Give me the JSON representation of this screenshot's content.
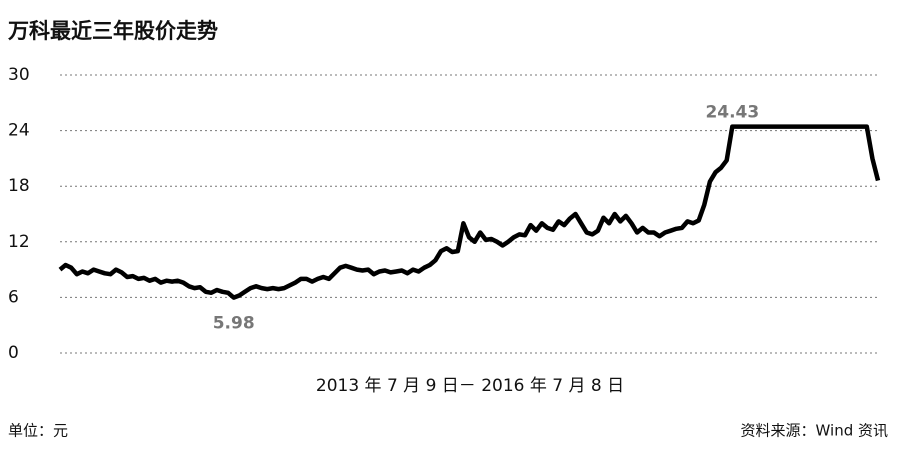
{
  "chart_data": {
    "type": "line",
    "title": "万科最近三年股价走势",
    "x_label": "2013 年 7 月 9 日－ 2016 年 7 月 8 日",
    "unit": "单位：元",
    "source": "资料来源：Wind 资讯",
    "categories": [
      null,
      null,
      null,
      null,
      null,
      null,
      null,
      null,
      null,
      null,
      null,
      null,
      null,
      null,
      null,
      null,
      null,
      null,
      null,
      null,
      null,
      null,
      null,
      null,
      null,
      null,
      null,
      null,
      null,
      null,
      null,
      null,
      null,
      null,
      null,
      null,
      null,
      null,
      null,
      null,
      null,
      null,
      null,
      null,
      null,
      null,
      null,
      null,
      null,
      null,
      null,
      null,
      null,
      null,
      null,
      null,
      null,
      null,
      null,
      null,
      null,
      null,
      null,
      null,
      null,
      null,
      null,
      null,
      null,
      null,
      null,
      null,
      null,
      null,
      null,
      null,
      null,
      null,
      null,
      null,
      null,
      null,
      null,
      null,
      null,
      null,
      null,
      null,
      null,
      null,
      null,
      null,
      null,
      null,
      null,
      null,
      null,
      null,
      null,
      null,
      null,
      null,
      null,
      null,
      null,
      null,
      null,
      null,
      null,
      null,
      null,
      null,
      null,
      null,
      null,
      null,
      null,
      null,
      null,
      null,
      null,
      null,
      null,
      null,
      null,
      null,
      null,
      null,
      null,
      null,
      null,
      null,
      null,
      null,
      null,
      null,
      null,
      null,
      null,
      null,
      null,
      null,
      null,
      null,
      null,
      null,
      null
    ],
    "values": [
      9,
      9.5,
      9.2,
      8.5,
      8.8,
      8.6,
      9.0,
      8.8,
      8.6,
      8.5,
      9.0,
      8.7,
      8.2,
      8.3,
      8.0,
      8.1,
      7.8,
      8.0,
      7.6,
      7.8,
      7.7,
      7.8,
      7.6,
      7.2,
      7.0,
      7.1,
      6.6,
      6.5,
      6.8,
      6.6,
      6.5,
      5.98,
      6.2,
      6.6,
      7.0,
      7.2,
      7.0,
      6.9,
      7.0,
      6.9,
      7.0,
      7.3,
      7.6,
      8.0,
      8.0,
      7.7,
      8.0,
      8.2,
      8.0,
      8.6,
      9.2,
      9.4,
      9.2,
      9.0,
      8.9,
      9.0,
      8.5,
      8.8,
      8.9,
      8.7,
      8.8,
      8.9,
      8.6,
      9.0,
      8.8,
      9.2,
      9.5,
      10.0,
      11.0,
      11.3,
      10.9,
      11.0,
      14.0,
      12.5,
      12.0,
      13.0,
      12.2,
      12.3,
      12.0,
      11.6,
      12.0,
      12.5,
      12.8,
      12.7,
      13.8,
      13.2,
      14.0,
      13.5,
      13.3,
      14.2,
      13.8,
      14.5,
      15.0,
      14.0,
      13.0,
      12.8,
      13.2,
      14.6,
      14.0,
      15.0,
      14.2,
      14.8,
      14.0,
      13.0,
      13.5,
      13.0,
      13.0,
      12.6,
      13.0,
      13.2,
      13.4,
      13.5,
      14.2,
      14.0,
      14.3,
      16.0,
      18.5,
      19.5,
      20.0,
      20.8,
      24.43,
      24.43,
      24.43,
      24.43,
      24.43,
      24.43,
      24.43,
      24.43,
      24.43,
      24.43,
      24.43,
      24.43,
      24.43,
      24.43,
      24.43,
      24.43,
      24.43,
      24.43,
      24.43,
      24.43,
      24.43,
      24.43,
      24.43,
      24.43,
      24.43,
      21,
      18.6
    ],
    "color": "#000000",
    "ylim": [
      0,
      30
    ],
    "yticks": [
      0,
      6,
      12,
      18,
      24,
      30
    ],
    "grid": true
  }
}
